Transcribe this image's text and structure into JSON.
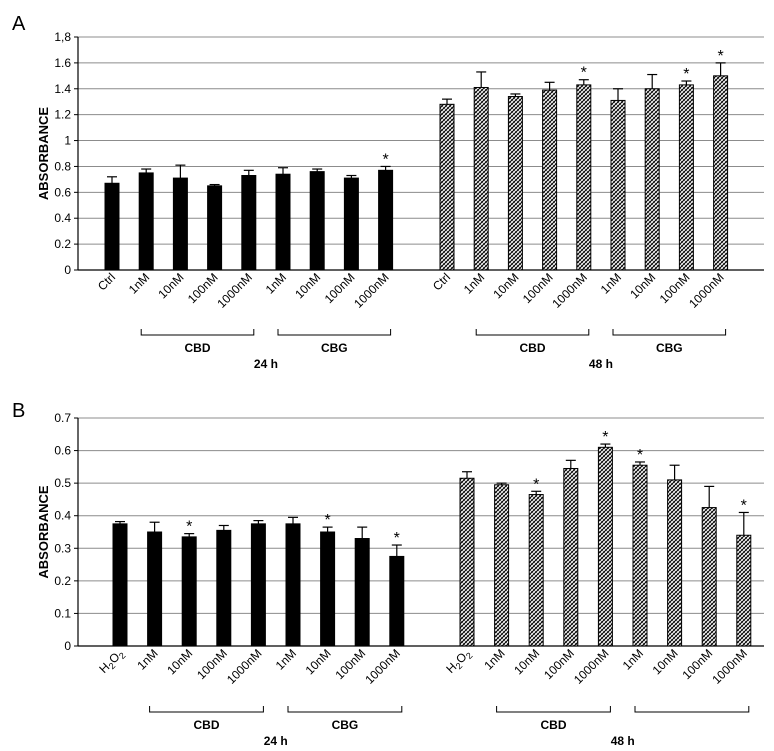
{
  "chart_data": [
    {
      "panel_label": "A",
      "type": "bar",
      "ylabel": "ABSORBANCE",
      "ylim": [
        0,
        1.8
      ],
      "yticks": [
        "0",
        "0.2",
        "0.4",
        "0.6",
        "0.8",
        "1",
        "1.2",
        "1.4",
        "1.6",
        "1,8"
      ],
      "grid": true,
      "groups": [
        {
          "time_label": "24 h",
          "pattern": "solid",
          "categories": [
            "Ctrl",
            "1nM",
            "10nM",
            "100nM",
            "1000nM",
            "1nM",
            "10nM",
            "100nM",
            "1000nM"
          ],
          "values": [
            0.67,
            0.75,
            0.71,
            0.65,
            0.73,
            0.74,
            0.76,
            0.71,
            0.77
          ],
          "errors": [
            0.05,
            0.03,
            0.1,
            0.01,
            0.04,
            0.05,
            0.02,
            0.02,
            0.03
          ],
          "significant": [
            false,
            false,
            false,
            false,
            false,
            false,
            false,
            false,
            true
          ],
          "brackets": [
            {
              "label": "CBD",
              "from": 1,
              "to": 4
            },
            {
              "label": "CBG",
              "from": 5,
              "to": 8
            }
          ]
        },
        {
          "time_label": "48 h",
          "pattern": "hatched",
          "categories": [
            "Ctrl",
            "1nM",
            "10nM",
            "100nM",
            "1000nM",
            "1nM",
            "10nM",
            "100nM",
            "1000nM"
          ],
          "values": [
            1.28,
            1.41,
            1.34,
            1.39,
            1.43,
            1.31,
            1.4,
            1.43,
            1.5
          ],
          "errors": [
            0.04,
            0.12,
            0.02,
            0.06,
            0.04,
            0.09,
            0.11,
            0.03,
            0.1
          ],
          "significant": [
            false,
            false,
            false,
            false,
            true,
            false,
            false,
            true,
            true
          ],
          "brackets": [
            {
              "label": "CBD",
              "from": 1,
              "to": 4
            },
            {
              "label": "CBG",
              "from": 5,
              "to": 8
            }
          ]
        }
      ]
    },
    {
      "panel_label": "B",
      "type": "bar",
      "ylabel": "ABSORBANCE",
      "ylim": [
        0,
        0.7
      ],
      "yticks": [
        "0",
        "0.1",
        "0.2",
        "0.3",
        "0.4",
        "0.5",
        "0.6",
        "0.7"
      ],
      "grid": true,
      "groups": [
        {
          "time_label": "24 h",
          "pattern": "solid",
          "categories": [
            "H2O2",
            "1nM",
            "10nM",
            "100nM",
            "1000nM",
            "1nM",
            "10nM",
            "100nM",
            "1000nM"
          ],
          "values": [
            0.375,
            0.35,
            0.335,
            0.355,
            0.375,
            0.375,
            0.35,
            0.33,
            0.275
          ],
          "errors": [
            0.007,
            0.03,
            0.01,
            0.015,
            0.01,
            0.02,
            0.015,
            0.035,
            0.035
          ],
          "significant": [
            false,
            false,
            true,
            false,
            false,
            false,
            true,
            false,
            true
          ],
          "brackets": [
            {
              "label": "CBD",
              "from": 1,
              "to": 4
            },
            {
              "label": "CBG",
              "from": 5,
              "to": 8
            }
          ]
        },
        {
          "time_label": "48 h",
          "pattern": "hatched",
          "categories": [
            "H2O2",
            "1nM",
            "10nM",
            "100nM",
            "1000nM",
            "1nM",
            "10nM",
            "100nM",
            "1000nM"
          ],
          "values": [
            0.515,
            0.495,
            0.465,
            0.545,
            0.61,
            0.555,
            0.51,
            0.425,
            0.34
          ],
          "errors": [
            0.02,
            0.005,
            0.01,
            0.025,
            0.01,
            0.01,
            0.045,
            0.065,
            0.07
          ],
          "significant": [
            false,
            false,
            true,
            false,
            true,
            true,
            false,
            false,
            true
          ],
          "brackets": [
            {
              "label": "CBD",
              "from": 1,
              "to": 4
            },
            {
              "label": "",
              "from": 5,
              "to": 8
            }
          ]
        }
      ]
    }
  ]
}
